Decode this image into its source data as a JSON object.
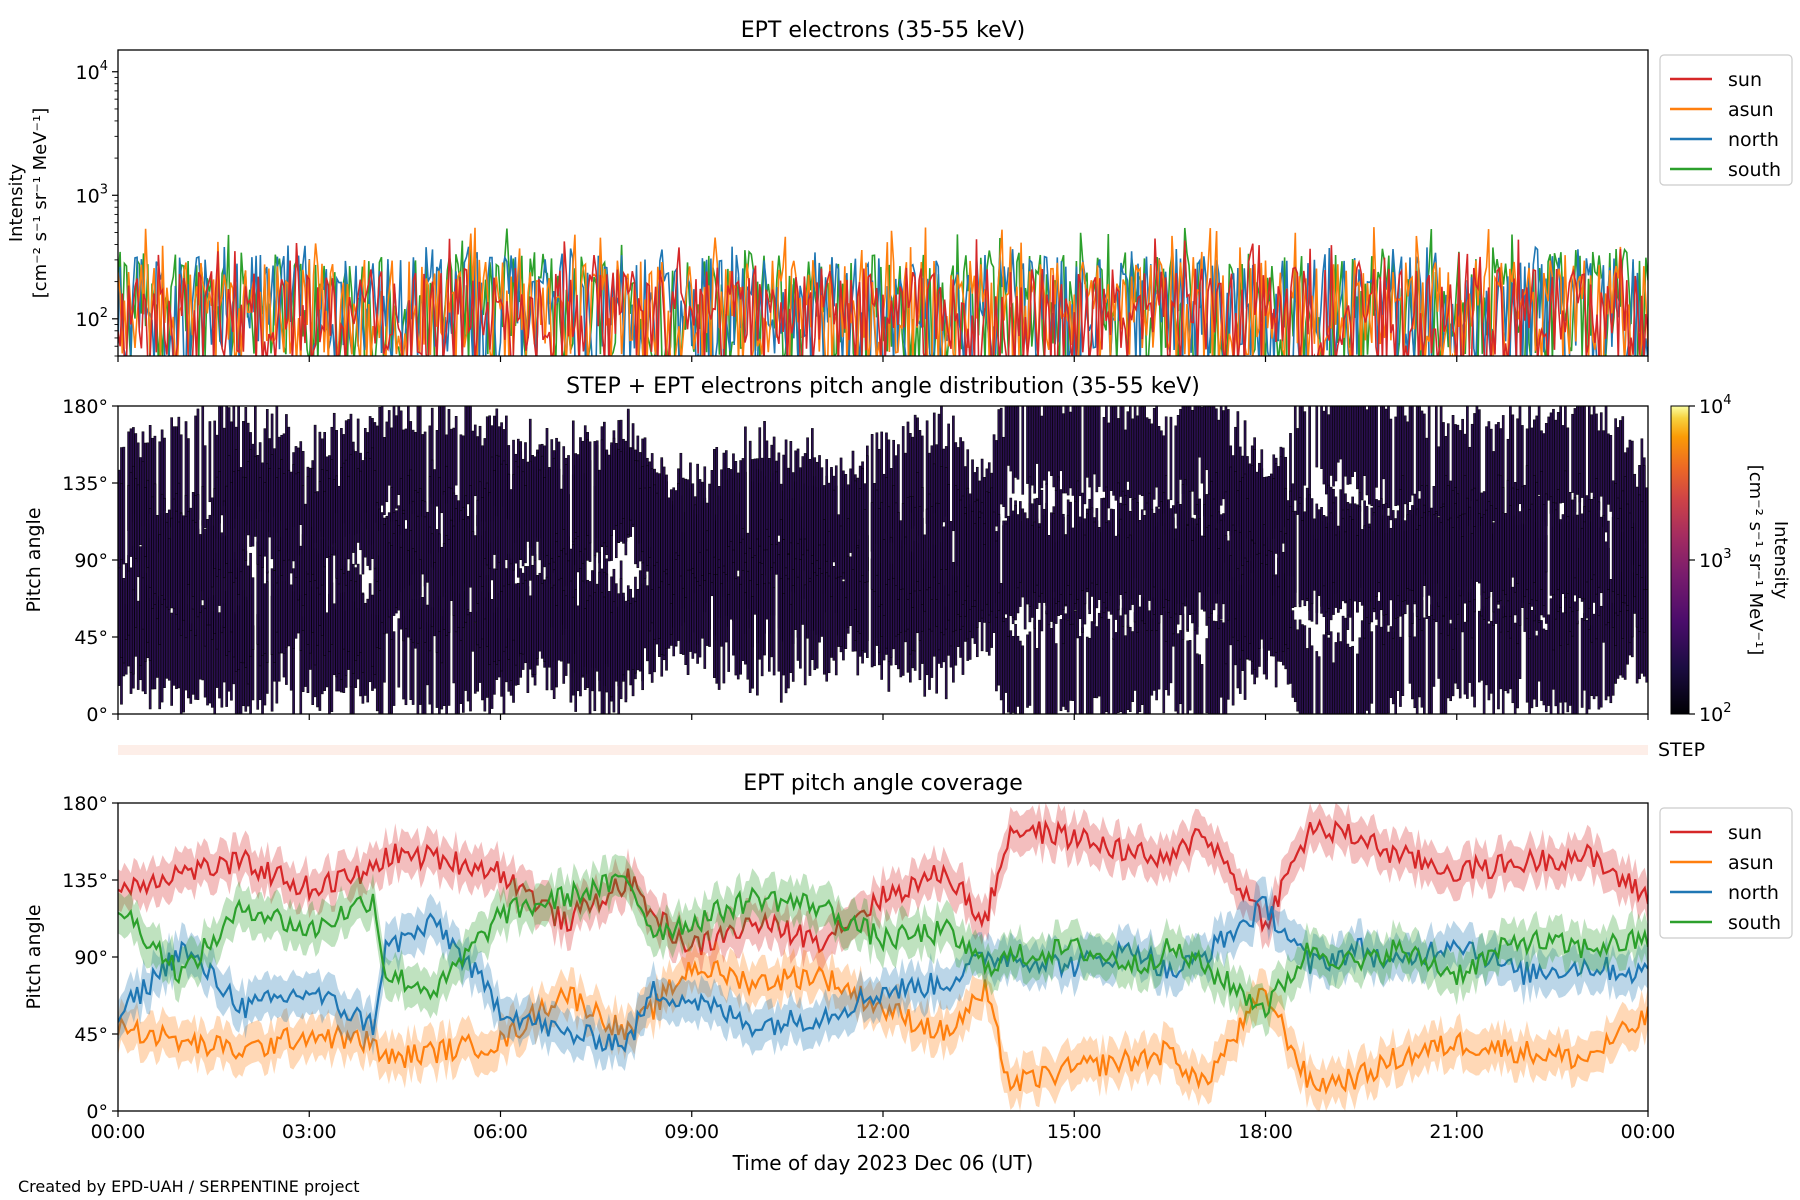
{
  "footer": "Created by EPD-UAH / SERPENTINE project",
  "chart_data": [
    {
      "type": "line",
      "title": "EPT electrons (35-55 keV)",
      "ylabel_line1": "Intensity",
      "ylabel_line2": "[cm⁻² s⁻¹ sr⁻¹ MeV⁻¹]",
      "yscale": "log",
      "ylim": [
        50,
        15000
      ],
      "yticks": [
        {
          "value": 100,
          "base": "10",
          "exp": "2"
        },
        {
          "value": 1000,
          "base": "10",
          "exp": "3"
        },
        {
          "value": 10000,
          "base": "10",
          "exp": "4"
        }
      ],
      "x_range_hours": [
        0,
        24
      ],
      "legend_position": "outside-right-top",
      "series": [
        {
          "name": "sun",
          "color": "#d62728",
          "typical_range": [
            50,
            260
          ],
          "peak": 450
        },
        {
          "name": "asun",
          "color": "#ff7f0e",
          "typical_range": [
            50,
            300
          ],
          "peak": 560
        },
        {
          "name": "north",
          "color": "#1f77b4",
          "typical_range": [
            50,
            330
          ],
          "peak": 400
        },
        {
          "name": "south",
          "color": "#2ca02c",
          "typical_range": [
            50,
            350
          ],
          "peak": 560
        }
      ]
    },
    {
      "type": "heatmap",
      "title": "STEP + EPT electrons pitch angle distribution (35-55 keV)",
      "ylabel": "Pitch angle",
      "ylim": [
        0,
        180
      ],
      "yticks": [
        "0°",
        "45°",
        "90°",
        "135°",
        "180°"
      ],
      "x_range_hours": [
        0,
        24
      ],
      "colormap": "inferno",
      "colorbar": {
        "label_line1": "Intensity",
        "label_line2": "[cm⁻² s⁻¹ sr⁻¹ MeV⁻¹]",
        "scale": "log",
        "range": [
          100,
          10000
        ],
        "ticks": [
          {
            "base": "10",
            "exp": "2"
          },
          {
            "base": "10",
            "exp": "3"
          },
          {
            "base": "10",
            "exp": "4"
          }
        ]
      },
      "dominant_color": "#2a0f4f"
    },
    {
      "type": "bar",
      "label": "STEP",
      "x_range_hours": [
        0,
        24
      ],
      "color": "#fdeee8"
    },
    {
      "type": "area",
      "title": "EPT pitch angle coverage",
      "ylabel": "Pitch angle",
      "xlabel": "Time of day 2023 Dec 06 (UT)",
      "ylim": [
        0,
        180
      ],
      "yticks": [
        "0°",
        "45°",
        "90°",
        "135°",
        "180°"
      ],
      "x_ticks": [
        "00:00",
        "03:00",
        "06:00",
        "09:00",
        "12:00",
        "15:00",
        "18:00",
        "21:00",
        "00:00"
      ],
      "legend_position": "outside-right-top",
      "band_halfwidth_deg": 12,
      "series": [
        {
          "name": "sun",
          "color": "#d62728",
          "x": [
            0,
            1,
            2,
            3,
            4,
            4.2,
            5,
            6,
            7,
            8,
            8.4,
            9,
            10,
            11,
            12,
            13,
            13.6,
            14,
            15,
            16,
            16.5,
            17,
            18,
            18.7,
            19.5,
            20,
            21,
            22,
            23,
            24
          ],
          "y": [
            130,
            140,
            145,
            130,
            140,
            150,
            148,
            140,
            110,
            135,
            115,
            95,
            110,
            100,
            125,
            140,
            110,
            165,
            160,
            150,
            145,
            165,
            110,
            165,
            160,
            150,
            140,
            145,
            150,
            125
          ]
        },
        {
          "name": "asun",
          "color": "#ff7f0e",
          "x": [
            0,
            1,
            2,
            3,
            4,
            4.2,
            5,
            6,
            7,
            8,
            8.4,
            9,
            10,
            11,
            12,
            13,
            13.6,
            14,
            15,
            16,
            16.5,
            17,
            18,
            18.7,
            19.5,
            20,
            21,
            22,
            23,
            24
          ],
          "y": [
            50,
            40,
            35,
            45,
            40,
            30,
            35,
            40,
            70,
            45,
            60,
            85,
            75,
            80,
            60,
            45,
            70,
            15,
            25,
            30,
            35,
            15,
            70,
            15,
            20,
            30,
            40,
            35,
            30,
            55
          ]
        },
        {
          "name": "north",
          "color": "#1f77b4",
          "x": [
            0,
            1,
            2,
            3,
            4,
            4.2,
            5,
            6,
            7,
            8,
            8.4,
            9,
            10,
            11,
            12,
            13,
            13.6,
            14,
            15,
            16,
            16.5,
            17,
            18,
            18.7,
            19.5,
            20,
            21,
            22,
            23,
            24
          ],
          "y": [
            55,
            95,
            60,
            70,
            50,
            95,
            110,
            60,
            45,
            40,
            70,
            65,
            50,
            55,
            70,
            75,
            90,
            90,
            85,
            95,
            80,
            90,
            120,
            85,
            95,
            85,
            100,
            80,
            85,
            80
          ]
        },
        {
          "name": "south",
          "color": "#2ca02c",
          "x": [
            0,
            1,
            2,
            3,
            4,
            4.2,
            5,
            6,
            7,
            8,
            8.4,
            9,
            10,
            11,
            12,
            13,
            13.6,
            14,
            15,
            16,
            16.5,
            17,
            18,
            18.7,
            19.5,
            20,
            21,
            22,
            23,
            24
          ],
          "y": [
            120,
            80,
            120,
            105,
            125,
            80,
            70,
            115,
            125,
            135,
            105,
            110,
            125,
            120,
            100,
            105,
            85,
            90,
            95,
            85,
            95,
            85,
            60,
            95,
            85,
            95,
            80,
            100,
            95,
            100
          ]
        }
      ]
    }
  ]
}
